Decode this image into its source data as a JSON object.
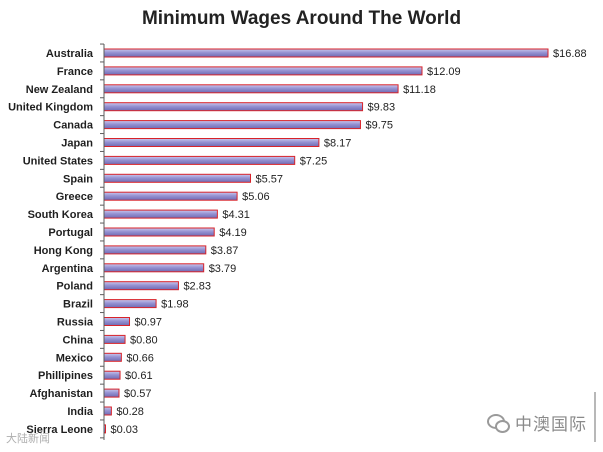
{
  "chart_data": {
    "type": "bar",
    "orientation": "horizontal",
    "title": "Minimum Wages Around The World",
    "categories": [
      "Australia",
      "France",
      "New Zealand",
      "United Kingdom",
      "Canada",
      "Japan",
      "United States",
      "Spain",
      "Greece",
      "South Korea",
      "Portugal",
      "Hong Kong",
      "Argentina",
      "Poland",
      "Brazil",
      "Russia",
      "China",
      "Mexico",
      "Phillipines",
      "Afghanistan",
      "India",
      "Sierra Leone"
    ],
    "values": [
      16.88,
      12.09,
      11.18,
      9.83,
      9.75,
      8.17,
      7.25,
      5.57,
      5.06,
      4.31,
      4.19,
      3.87,
      3.79,
      2.83,
      1.98,
      0.97,
      0.8,
      0.66,
      0.61,
      0.57,
      0.28,
      0.03
    ],
    "value_labels": [
      "$16.88",
      "$12.09",
      "$11.18",
      "$9.83",
      "$9.75",
      "$8.17",
      "$7.25",
      "$5.57",
      "$5.06",
      "$4.31",
      "$4.19",
      "$3.87",
      "$3.79",
      "$2.83",
      "$1.98",
      "$0.97",
      "$0.80",
      "$0.66",
      "$0.61",
      "$0.57",
      "$0.28",
      "$0.03"
    ],
    "xlim": [
      0,
      16.88
    ],
    "grid": false,
    "legend": "none",
    "colors": {
      "bar_fill": "#8a86c8",
      "bar_highlight": "#c9c7ee",
      "bar_outline": "#d8232a",
      "axis": "#5b5b5b"
    }
  },
  "watermarks": {
    "wechat_text": "中澳国际",
    "weibo_text": "大陆新闻"
  }
}
